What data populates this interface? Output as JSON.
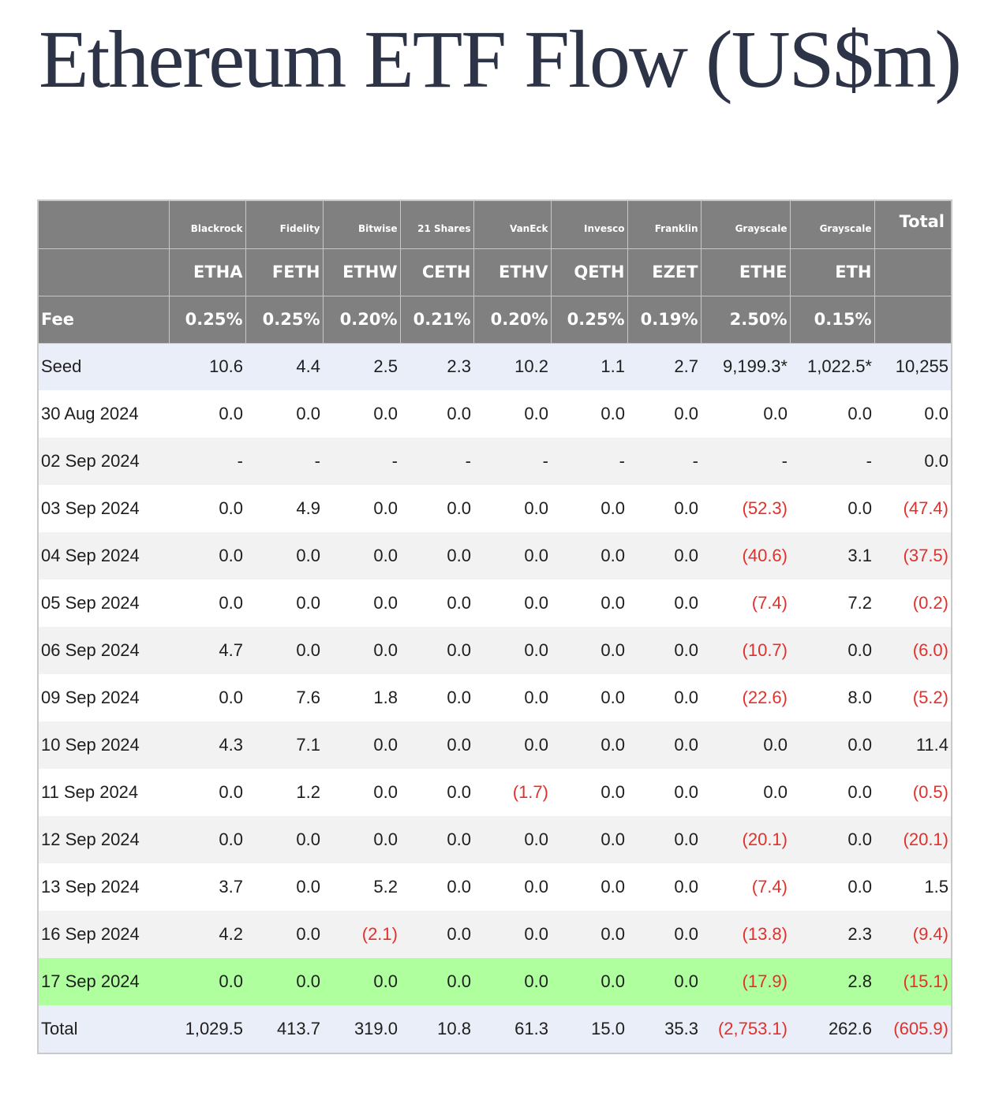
{
  "title": "Ethereum ETF Flow (US$m)",
  "issuers": [
    "Blackrock",
    "Fidelity",
    "Bitwise",
    "21 Shares",
    "VanEck",
    "Invesco",
    "Franklin",
    "Grayscale",
    "Grayscale",
    "Total"
  ],
  "tickers": [
    "ETHA",
    "FETH",
    "ETHW",
    "CETH",
    "ETHV",
    "QETH",
    "EZET",
    "ETHE",
    "ETH",
    ""
  ],
  "fee_label": "Fee",
  "fees": [
    "0.25%",
    "0.25%",
    "0.20%",
    "0.21%",
    "0.20%",
    "0.25%",
    "0.19%",
    "2.50%",
    "0.15%",
    ""
  ],
  "rows": [
    {
      "label": "Seed",
      "values": [
        "10.6",
        "4.4",
        "2.5",
        "2.3",
        "10.2",
        "1.1",
        "2.7",
        "9,199.3*",
        "1,022.5*",
        "10,255"
      ]
    },
    {
      "label": "30 Aug 2024",
      "values": [
        "0.0",
        "0.0",
        "0.0",
        "0.0",
        "0.0",
        "0.0",
        "0.0",
        "0.0",
        "0.0",
        "0.0"
      ]
    },
    {
      "label": "02 Sep 2024",
      "values": [
        "-",
        "-",
        "-",
        "-",
        "-",
        "-",
        "-",
        "-",
        "-",
        "0.0"
      ]
    },
    {
      "label": "03 Sep 2024",
      "values": [
        "0.0",
        "4.9",
        "0.0",
        "0.0",
        "0.0",
        "0.0",
        "0.0",
        "(52.3)",
        "0.0",
        "(47.4)"
      ]
    },
    {
      "label": "04 Sep 2024",
      "values": [
        "0.0",
        "0.0",
        "0.0",
        "0.0",
        "0.0",
        "0.0",
        "0.0",
        "(40.6)",
        "3.1",
        "(37.5)"
      ]
    },
    {
      "label": "05 Sep 2024",
      "values": [
        "0.0",
        "0.0",
        "0.0",
        "0.0",
        "0.0",
        "0.0",
        "0.0",
        "(7.4)",
        "7.2",
        "(0.2)"
      ]
    },
    {
      "label": "06 Sep 2024",
      "values": [
        "4.7",
        "0.0",
        "0.0",
        "0.0",
        "0.0",
        "0.0",
        "0.0",
        "(10.7)",
        "0.0",
        "(6.0)"
      ]
    },
    {
      "label": "09 Sep 2024",
      "values": [
        "0.0",
        "7.6",
        "1.8",
        "0.0",
        "0.0",
        "0.0",
        "0.0",
        "(22.6)",
        "8.0",
        "(5.2)"
      ]
    },
    {
      "label": "10 Sep 2024",
      "values": [
        "4.3",
        "7.1",
        "0.0",
        "0.0",
        "0.0",
        "0.0",
        "0.0",
        "0.0",
        "0.0",
        "11.4"
      ]
    },
    {
      "label": "11 Sep 2024",
      "values": [
        "0.0",
        "1.2",
        "0.0",
        "0.0",
        "(1.7)",
        "0.0",
        "0.0",
        "0.0",
        "0.0",
        "(0.5)"
      ]
    },
    {
      "label": "12 Sep 2024",
      "values": [
        "0.0",
        "0.0",
        "0.0",
        "0.0",
        "0.0",
        "0.0",
        "0.0",
        "(20.1)",
        "0.0",
        "(20.1)"
      ]
    },
    {
      "label": "13 Sep 2024",
      "values": [
        "3.7",
        "0.0",
        "5.2",
        "0.0",
        "0.0",
        "0.0",
        "0.0",
        "(7.4)",
        "0.0",
        "1.5"
      ]
    },
    {
      "label": "16 Sep 2024",
      "values": [
        "4.2",
        "0.0",
        "(2.1)",
        "0.0",
        "0.0",
        "0.0",
        "0.0",
        "(13.8)",
        "2.3",
        "(9.4)"
      ]
    },
    {
      "label": "17 Sep 2024",
      "values": [
        "0.0",
        "0.0",
        "0.0",
        "0.0",
        "0.0",
        "0.0",
        "0.0",
        "(17.9)",
        "2.8",
        "(15.1)"
      ]
    },
    {
      "label": "Total",
      "values": [
        "1,029.5",
        "413.7",
        "319.0",
        "10.8",
        "61.3",
        "15.0",
        "35.3",
        "(2,753.1)",
        "262.6",
        "(605.9)"
      ]
    }
  ],
  "highlight_row_label": "17 Sep 2024",
  "colors": {
    "header_bg": "#808080",
    "negative": "#e0312d",
    "highlight": "#afff9f",
    "seed_total_bg": "#eaeef8",
    "title": "#2e3447"
  }
}
